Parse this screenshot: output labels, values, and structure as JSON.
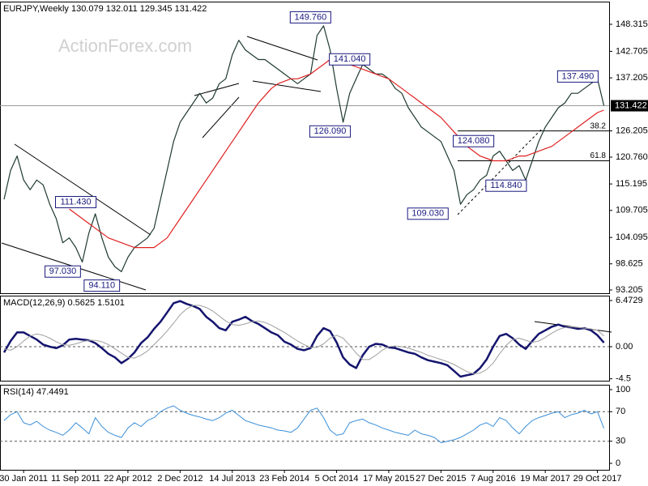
{
  "chart_data": [
    {
      "type": "line",
      "title": "EURJPY,Weekly  130.079 132.011 129.345 131.422",
      "watermark": "ActionForex.com",
      "ylim": [
        92.53,
        153.02
      ],
      "yticks": [
        148.315,
        142.705,
        137.205,
        126.205,
        {
          "value": 120.76,
          "label": "120.760"
        },
        115.195,
        109.705,
        104.095,
        98.625,
        93.205
      ],
      "series": [
        {
          "color": "#1e3a2e",
          "values": [
            112,
            118,
            121,
            116,
            114,
            116,
            115,
            111,
            108,
            103,
            104,
            102,
            99,
            105,
            109,
            104,
            100,
            98,
            97,
            100,
            102,
            103,
            104,
            106,
            112,
            118,
            124,
            128,
            130,
            132,
            134,
            132,
            133,
            136,
            137,
            142,
            145,
            143,
            142,
            141,
            141,
            140,
            139,
            138,
            137,
            136,
            137,
            138,
            146,
            148,
            143,
            135,
            128,
            134,
            137,
            140,
            139,
            138,
            138,
            137,
            135,
            134,
            131,
            129,
            127,
            126,
            125,
            124,
            121,
            118,
            111,
            113,
            114,
            116,
            117,
            121,
            122,
            120,
            118,
            119,
            116,
            120,
            124,
            127,
            129,
            131,
            132,
            134,
            134,
            135,
            136,
            137,
            131.422
          ]
        },
        {
          "color": "#e02020",
          "values": [
            null,
            null,
            null,
            null,
            null,
            null,
            null,
            null,
            null,
            null,
            110,
            109,
            108,
            107,
            106,
            105,
            104,
            103.5,
            103,
            102.5,
            102,
            102,
            102,
            102,
            103,
            104,
            106,
            108,
            110,
            112,
            114,
            116,
            118,
            120,
            122,
            124,
            126,
            128,
            130,
            132,
            133.5,
            135,
            136,
            136.5,
            137,
            137,
            137.5,
            138,
            139,
            140,
            141,
            141,
            140.5,
            140,
            139.5,
            139,
            138.5,
            138,
            137.5,
            137,
            136,
            135,
            134,
            133,
            132,
            131,
            130,
            129,
            127.5,
            126,
            124.5,
            123,
            122,
            121,
            120.5,
            120,
            120,
            120,
            120.5,
            121,
            121,
            121.5,
            122,
            122.5,
            123,
            124,
            125,
            126,
            127,
            128,
            129,
            130,
            130.5
          ]
        }
      ],
      "last": {
        "label": "131.422",
        "value": 131.422
      },
      "levels": [
        {
          "label": "38.2",
          "value": 126.2
        },
        {
          "label": "61.8",
          "value": 120.0
        }
      ],
      "annotations": [
        {
          "label": "149.760",
          "value": 149.76,
          "index": 47
        },
        {
          "label": "141.040",
          "value": 141.04,
          "index": 53
        },
        {
          "label": "126.090",
          "value": 126.09,
          "index": 50
        },
        {
          "label": "124.080",
          "value": 124.08,
          "index": 72
        },
        {
          "label": "114.840",
          "value": 114.84,
          "index": 77
        },
        {
          "label": "109.030",
          "value": 109.03,
          "index": 65
        },
        {
          "label": "111.430",
          "value": 111.43,
          "index": 11
        },
        {
          "label": "97.030",
          "value": 97.03,
          "index": 9
        },
        {
          "label": "94.110",
          "value": 94.11,
          "index": 15
        },
        {
          "label": "137.490",
          "value": 137.49,
          "index": 88
        }
      ]
    },
    {
      "type": "line",
      "title": "MACD(12,26,9) 0.5625 1.5101",
      "ylim": [
        -4.77,
        7.16
      ],
      "yticks": [
        6.4729,
        {
          "value": 0,
          "label": "0.00"
        },
        -4.5
      ],
      "dashed_levels": [
        0
      ],
      "series": [
        {
          "color": "#14146e",
          "width": 2.5,
          "values": [
            -0.8,
            0.8,
            2.0,
            2.0,
            1.5,
            1.0,
            0.3,
            0.0,
            -0.2,
            0.2,
            1.0,
            1.1,
            1.0,
            0.9,
            0.5,
            -0.2,
            -1.0,
            -1.5,
            -2.3,
            -1.7,
            -0.8,
            0.5,
            1.3,
            2.5,
            3.5,
            4.8,
            6.1,
            6.4,
            6.0,
            5.7,
            5.3,
            4.2,
            3.5,
            2.6,
            2.3,
            3.5,
            3.8,
            4.2,
            3.6,
            3.2,
            2.6,
            2.0,
            1.6,
            0.7,
            0.3,
            -0.3,
            -0.5,
            -0.2,
            1.5,
            2.6,
            2.2,
            0.6,
            -1.5,
            -2.5,
            -3.0,
            -1.2,
            0.0,
            0.4,
            0.3,
            -0.1,
            -0.2,
            -0.5,
            -0.8,
            -1.0,
            -1.5,
            -1.9,
            -2.1,
            -2.3,
            -2.6,
            -3.4,
            -4.2,
            -4.0,
            -3.8,
            -3.0,
            -1.8,
            0.0,
            1.5,
            1.8,
            1.2,
            0.3,
            -0.3,
            0.8,
            1.8,
            2.3,
            2.8,
            3.1,
            2.8,
            2.7,
            2.5,
            2.6,
            2.3,
            1.6,
            0.5625
          ]
        },
        {
          "color": "#a0a0a0",
          "width": 1,
          "values": [
            -0.3,
            -0.5,
            0.0,
            0.8,
            1.5,
            1.8,
            1.6,
            1.2,
            0.7,
            0.3,
            0.2,
            0.4,
            0.7,
            0.9,
            0.9,
            0.7,
            0.3,
            -0.3,
            -0.9,
            -1.5,
            -1.6,
            -1.2,
            -0.6,
            0.3,
            1.2,
            2.2,
            3.3,
            4.5,
            5.3,
            5.8,
            5.8,
            5.5,
            5.0,
            4.3,
            3.6,
            3.1,
            3.0,
            3.2,
            3.5,
            3.6,
            3.4,
            3.0,
            2.5,
            2.0,
            1.4,
            0.8,
            0.3,
            -0.1,
            -0.1,
            0.4,
            1.2,
            1.6,
            1.2,
            0.2,
            -0.9,
            -1.8,
            -1.8,
            -1.2,
            -0.5,
            0.0,
            0.1,
            0.0,
            -0.2,
            -0.5,
            -0.8,
            -1.2,
            -1.5,
            -1.8,
            -2.1,
            -2.5,
            -3.0,
            -3.5,
            -3.8,
            -3.7,
            -3.2,
            -2.3,
            -1.0,
            0.2,
            1.0,
            1.2,
            0.9,
            0.6,
            0.8,
            1.3,
            1.9,
            2.4,
            2.7,
            2.8,
            2.7,
            2.6,
            2.5,
            2.3,
            1.5101
          ]
        }
      ]
    },
    {
      "type": "line",
      "title": "RSI(14) 47.4491",
      "ylim": [
        -8.8,
        106.6
      ],
      "yticks": [
        100,
        70,
        30,
        0
      ],
      "dashed_levels": [
        70,
        30
      ],
      "categories": [
        null,
        null,
        null,
        "30 Jan 2011",
        null,
        null,
        null,
        null,
        null,
        null,
        null,
        "11 Sep 2011",
        null,
        null,
        null,
        null,
        null,
        null,
        null,
        "22 Apr 2012",
        null,
        null,
        null,
        null,
        null,
        null,
        null,
        "2 Dec 2012",
        null,
        null,
        null,
        null,
        null,
        null,
        null,
        "14 Jul 2013",
        null,
        null,
        null,
        null,
        null,
        null,
        null,
        "23 Feb 2014",
        null,
        null,
        null,
        null,
        null,
        null,
        null,
        "5 Oct 2014",
        null,
        null,
        null,
        null,
        null,
        null,
        null,
        "17 May 2015",
        null,
        null,
        null,
        null,
        null,
        null,
        null,
        "27 Dec 2015",
        null,
        null,
        null,
        null,
        null,
        null,
        null,
        "7 Aug 2016",
        null,
        null,
        null,
        null,
        null,
        null,
        null,
        "19 Mar 2017",
        null,
        null,
        null,
        null,
        null,
        null,
        null,
        "29 Oct 2017",
        null
      ],
      "series": [
        {
          "color": "#3a8fd8",
          "width": 1,
          "values": [
            58,
            66,
            70,
            55,
            52,
            57,
            50,
            45,
            42,
            38,
            45,
            55,
            48,
            40,
            62,
            50,
            42,
            38,
            35,
            48,
            55,
            50,
            58,
            62,
            70,
            75,
            78,
            72,
            68,
            65,
            63,
            60,
            58,
            62,
            68,
            72,
            65,
            58,
            55,
            52,
            50,
            48,
            45,
            44,
            42,
            48,
            60,
            72,
            75,
            62,
            45,
            38,
            40,
            55,
            58,
            60,
            55,
            52,
            48,
            45,
            42,
            40,
            38,
            45,
            40,
            38,
            35,
            28,
            30,
            32,
            35,
            40,
            45,
            52,
            55,
            50,
            62,
            58,
            48,
            40,
            50,
            58,
            62,
            65,
            68,
            70,
            62,
            66,
            68,
            72,
            67,
            70,
            47.4491
          ]
        }
      ]
    }
  ]
}
